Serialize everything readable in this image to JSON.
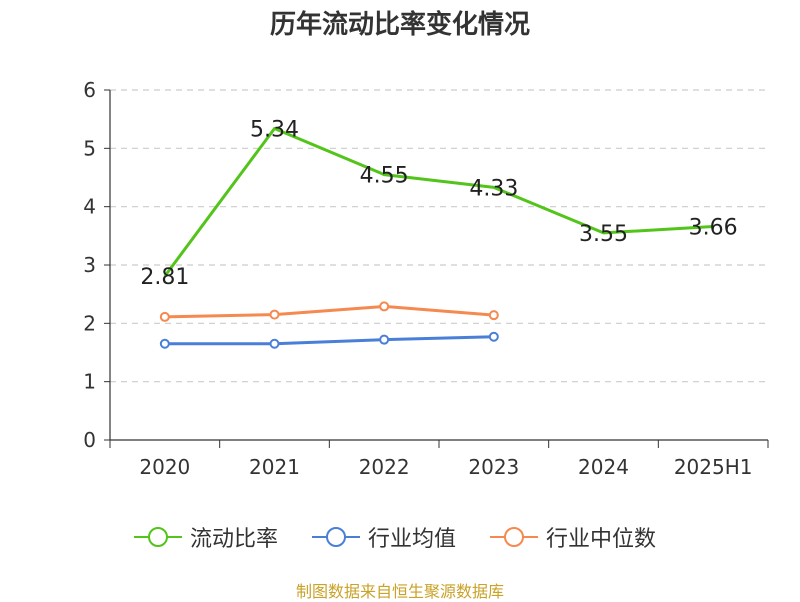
{
  "chart_data": {
    "type": "line",
    "title": "历年流动比率变化情况",
    "categories": [
      "2020",
      "2021",
      "2022",
      "2023",
      "2024",
      "2025H1"
    ],
    "ylim": [
      0,
      6
    ],
    "yticks": [
      "0",
      "1",
      "2",
      "3",
      "4",
      "5",
      "6"
    ],
    "grid": true,
    "legend_position": "bottom-center",
    "series": [
      {
        "name": "流动比率",
        "color": "#52c41a",
        "values": [
          2.81,
          5.34,
          4.55,
          4.33,
          3.55,
          3.66
        ],
        "labels": [
          "2.81",
          "5.34",
          "4.55",
          "4.33",
          "3.55",
          "3.66"
        ]
      },
      {
        "name": "行业均值",
        "color": "#4a7fd8",
        "values": [
          1.65,
          1.65,
          1.72,
          1.77,
          null,
          null
        ]
      },
      {
        "name": "行业中位数",
        "color": "#f5894f",
        "values": [
          2.11,
          2.15,
          2.29,
          2.14,
          null,
          null
        ]
      }
    ]
  },
  "footer": {
    "source": "制图数据来自恒生聚源数据库"
  }
}
